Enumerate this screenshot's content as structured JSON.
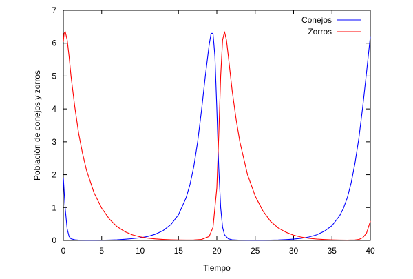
{
  "chart_data": {
    "type": "line",
    "title": "",
    "xlabel": "Tiempo",
    "ylabel": "Población de conejos y zorros",
    "xlim": [
      0,
      40
    ],
    "ylim": [
      0,
      7
    ],
    "xticks": [
      0,
      5,
      10,
      15,
      20,
      25,
      30,
      35,
      40
    ],
    "yticks": [
      0,
      1,
      2,
      3,
      4,
      5,
      6,
      7
    ],
    "grid": false,
    "legend_position": "top-right",
    "series": [
      {
        "name": "Conejos",
        "color": "#0000ff",
        "x": [
          0,
          0.25,
          0.5,
          0.75,
          1,
          1.5,
          2,
          3,
          4,
          5,
          6,
          7,
          8,
          9,
          10,
          11,
          12,
          13,
          14,
          15,
          16,
          16.5,
          17,
          17.5,
          18,
          18.5,
          19,
          19.25,
          19.5,
          19.75,
          20,
          20.25,
          20.5,
          20.75,
          21,
          21.5,
          22,
          23,
          24,
          25,
          26,
          27,
          28,
          29,
          30,
          31,
          32,
          33,
          34,
          35,
          36,
          36.5,
          37,
          37.5,
          38,
          38.5,
          39,
          39.5,
          40
        ],
        "y": [
          1.9,
          0.95,
          0.35,
          0.12,
          0.05,
          0.02,
          0.01,
          0.005,
          0.005,
          0.008,
          0.012,
          0.02,
          0.035,
          0.055,
          0.08,
          0.12,
          0.19,
          0.3,
          0.48,
          0.78,
          1.3,
          1.7,
          2.25,
          3.0,
          3.95,
          5.0,
          5.95,
          6.3,
          6.3,
          5.6,
          4.0,
          2.2,
          1.0,
          0.4,
          0.17,
          0.05,
          0.02,
          0.008,
          0.005,
          0.005,
          0.006,
          0.009,
          0.014,
          0.025,
          0.04,
          0.065,
          0.105,
          0.17,
          0.28,
          0.45,
          0.75,
          0.98,
          1.3,
          1.75,
          2.35,
          3.1,
          4.05,
          5.1,
          6.2
        ]
      },
      {
        "name": "Zorros",
        "color": "#ff0000",
        "x": [
          0,
          0.1,
          0.25,
          0.5,
          0.75,
          1,
          1.5,
          2,
          2.5,
          3,
          4,
          5,
          6,
          7,
          8,
          9,
          10,
          11,
          12,
          13,
          14,
          15,
          16,
          17,
          18,
          19,
          19.5,
          20,
          20.25,
          20.5,
          20.75,
          21,
          21.25,
          21.5,
          22,
          22.5,
          23,
          24,
          25,
          26,
          27,
          28,
          29,
          30,
          31,
          32,
          33,
          34,
          35,
          36,
          37,
          38,
          38.5,
          39,
          39.5,
          40
        ],
        "y": [
          6.05,
          6.3,
          6.35,
          6.1,
          5.6,
          5.0,
          4.05,
          3.25,
          2.65,
          2.15,
          1.45,
          0.98,
          0.65,
          0.42,
          0.27,
          0.17,
          0.11,
          0.07,
          0.045,
          0.03,
          0.02,
          0.014,
          0.012,
          0.014,
          0.03,
          0.12,
          0.4,
          1.6,
          3.2,
          5.0,
          6.1,
          6.35,
          6.1,
          5.6,
          4.55,
          3.7,
          3.0,
          2.0,
          1.35,
          0.9,
          0.58,
          0.38,
          0.25,
          0.16,
          0.1,
          0.065,
          0.042,
          0.028,
          0.018,
          0.012,
          0.009,
          0.015,
          0.03,
          0.08,
          0.22,
          0.58
        ]
      }
    ]
  }
}
